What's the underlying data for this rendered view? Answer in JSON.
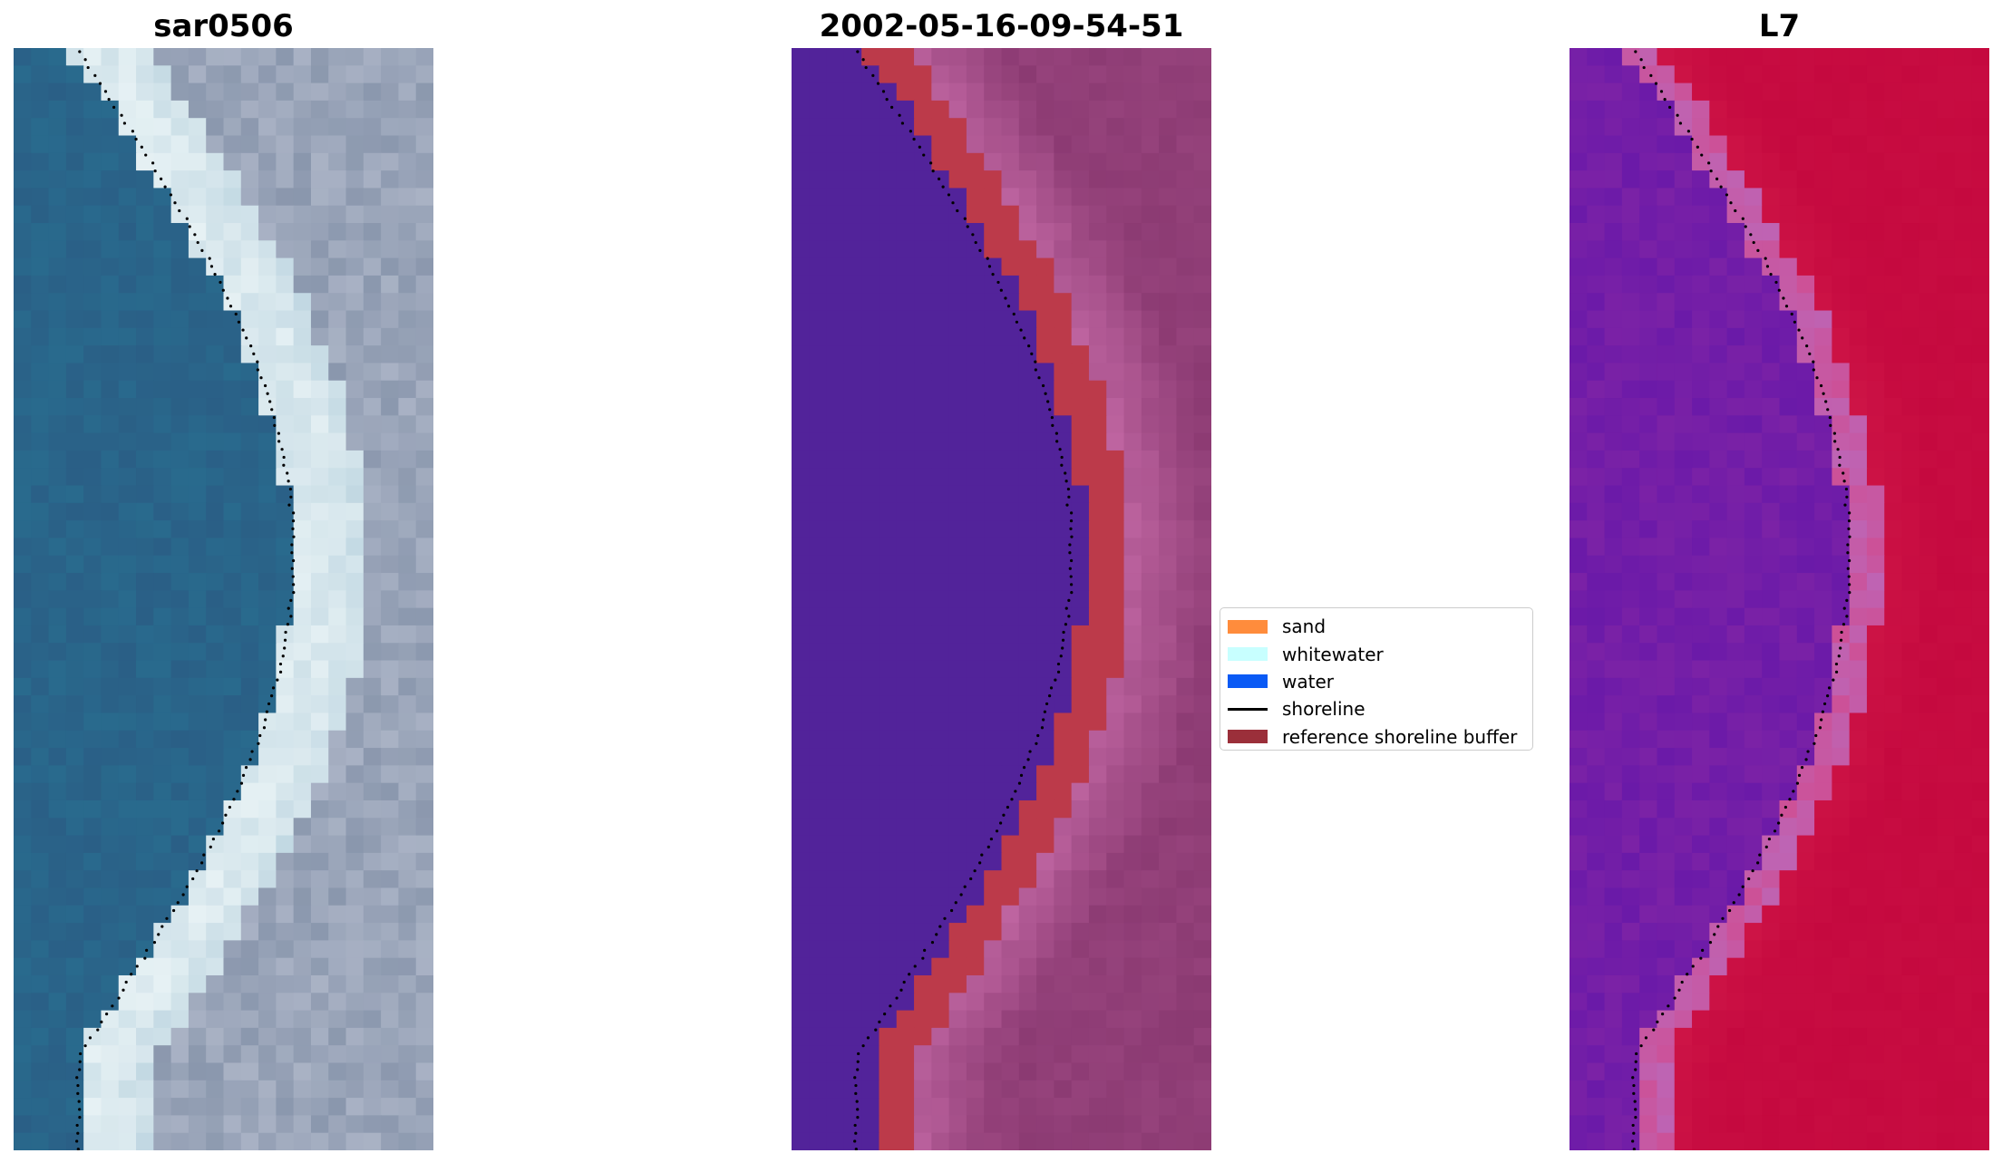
{
  "panels": [
    {
      "title": "sar0506",
      "kind": "rgb"
    },
    {
      "title": "2002-05-16-09-54-51",
      "kind": "classified"
    },
    {
      "title": "L7",
      "kind": "mndwi"
    }
  ],
  "legend": {
    "items": [
      {
        "label": "sand",
        "color": "#ff8c3c",
        "kind": "patch"
      },
      {
        "label": "whitewater",
        "color": "#c8ffff",
        "kind": "patch"
      },
      {
        "label": "water",
        "color": "#0a5af5",
        "kind": "patch"
      },
      {
        "label": "shoreline",
        "color": "#000000",
        "kind": "line"
      },
      {
        "label": "reference shoreline buffer",
        "color": "#9b2f3a",
        "kind": "patch"
      }
    ]
  },
  "colors": {
    "water_rgb": "#2a5f86",
    "whitewater_rgb": "#e6f1f4",
    "land_rgb": "#8a97ad",
    "water_class": "#52239a",
    "buffer_class": "#bc3a4a",
    "land_class": "#8b3a72",
    "water_index": "#7b22a6",
    "land_index": "#c5093f"
  }
}
